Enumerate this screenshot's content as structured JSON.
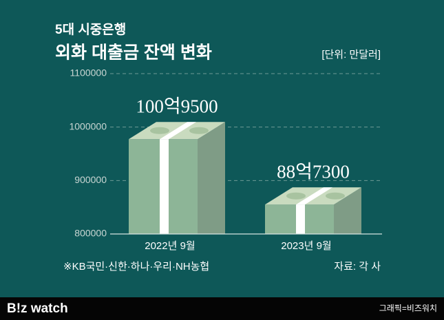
{
  "header": {
    "subtitle": "5대 시중은행",
    "title": "외화 대출금 잔액 변화",
    "unit": "[단위: 만달러]"
  },
  "chart_data": {
    "type": "bar",
    "categories": [
      "2022년 9월",
      "2023년 9월"
    ],
    "values": [
      1009500,
      887300
    ],
    "value_labels": [
      "100억9500",
      "88억7300"
    ],
    "color": "#8db597",
    "ylim": [
      800000,
      1100000
    ],
    "yticks": [
      800000,
      900000,
      1000000,
      1100000
    ],
    "grid": true
  },
  "notes": {
    "banks": "※KB국민·신한·하나·우리·NH농협",
    "source": "자료: 각 사"
  },
  "footer": {
    "brand": "B!z watch",
    "credit": "그래픽=비즈워치"
  }
}
